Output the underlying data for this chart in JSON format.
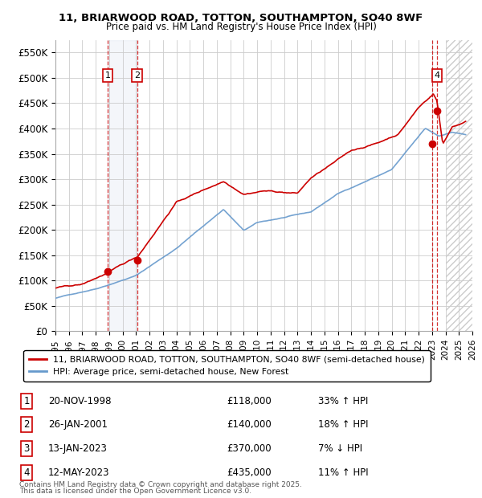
{
  "title_line1": "11, BRIARWOOD ROAD, TOTTON, SOUTHAMPTON, SO40 8WF",
  "title_line2": "Price paid vs. HM Land Registry's House Price Index (HPI)",
  "ylim": [
    0,
    575000
  ],
  "yticks": [
    0,
    50000,
    100000,
    150000,
    200000,
    250000,
    300000,
    350000,
    400000,
    450000,
    500000,
    550000
  ],
  "ytick_labels": [
    "£0",
    "£50K",
    "£100K",
    "£150K",
    "£200K",
    "£250K",
    "£300K",
    "£350K",
    "£400K",
    "£450K",
    "£500K",
    "£550K"
  ],
  "hpi_color": "#6699cc",
  "price_color": "#cc0000",
  "transactions": [
    {
      "num": 1,
      "date_str": "20-NOV-1998",
      "date_x": 1998.89,
      "price": 118000,
      "pct": "33%",
      "dir": "↑"
    },
    {
      "num": 2,
      "date_str": "26-JAN-2001",
      "date_x": 2001.07,
      "price": 140000,
      "pct": "18%",
      "dir": "↑"
    },
    {
      "num": 3,
      "date_str": "13-JAN-2023",
      "date_x": 2023.04,
      "price": 370000,
      "pct": "7%",
      "dir": "↓"
    },
    {
      "num": 4,
      "date_str": "12-MAY-2023",
      "date_x": 2023.37,
      "price": 435000,
      "pct": "11%",
      "dir": "↑"
    }
  ],
  "legend_line1": "11, BRIARWOOD ROAD, TOTTON, SOUTHAMPTON, SO40 8WF (semi-detached house)",
  "legend_line2": "HPI: Average price, semi-detached house, New Forest",
  "footer_line1": "Contains HM Land Registry data © Crown copyright and database right 2025.",
  "footer_line2": "This data is licensed under the Open Government Licence v3.0.",
  "xmin": 1995,
  "xmax": 2026,
  "blue_shade_start": 1998.89,
  "blue_shade_end": 2001.07,
  "hatch_shade_start": 2024.0,
  "hatch_shade_end": 2026.0,
  "table_rows": [
    [
      "1",
      "20-NOV-1998",
      "£118,000",
      "33% ↑ HPI"
    ],
    [
      "2",
      "26-JAN-2001",
      "£140,000",
      "18% ↑ HPI"
    ],
    [
      "3",
      "13-JAN-2023",
      "£370,000",
      "7% ↓ HPI"
    ],
    [
      "4",
      "12-MAY-2023",
      "£435,000",
      "11% ↑ HPI"
    ]
  ]
}
